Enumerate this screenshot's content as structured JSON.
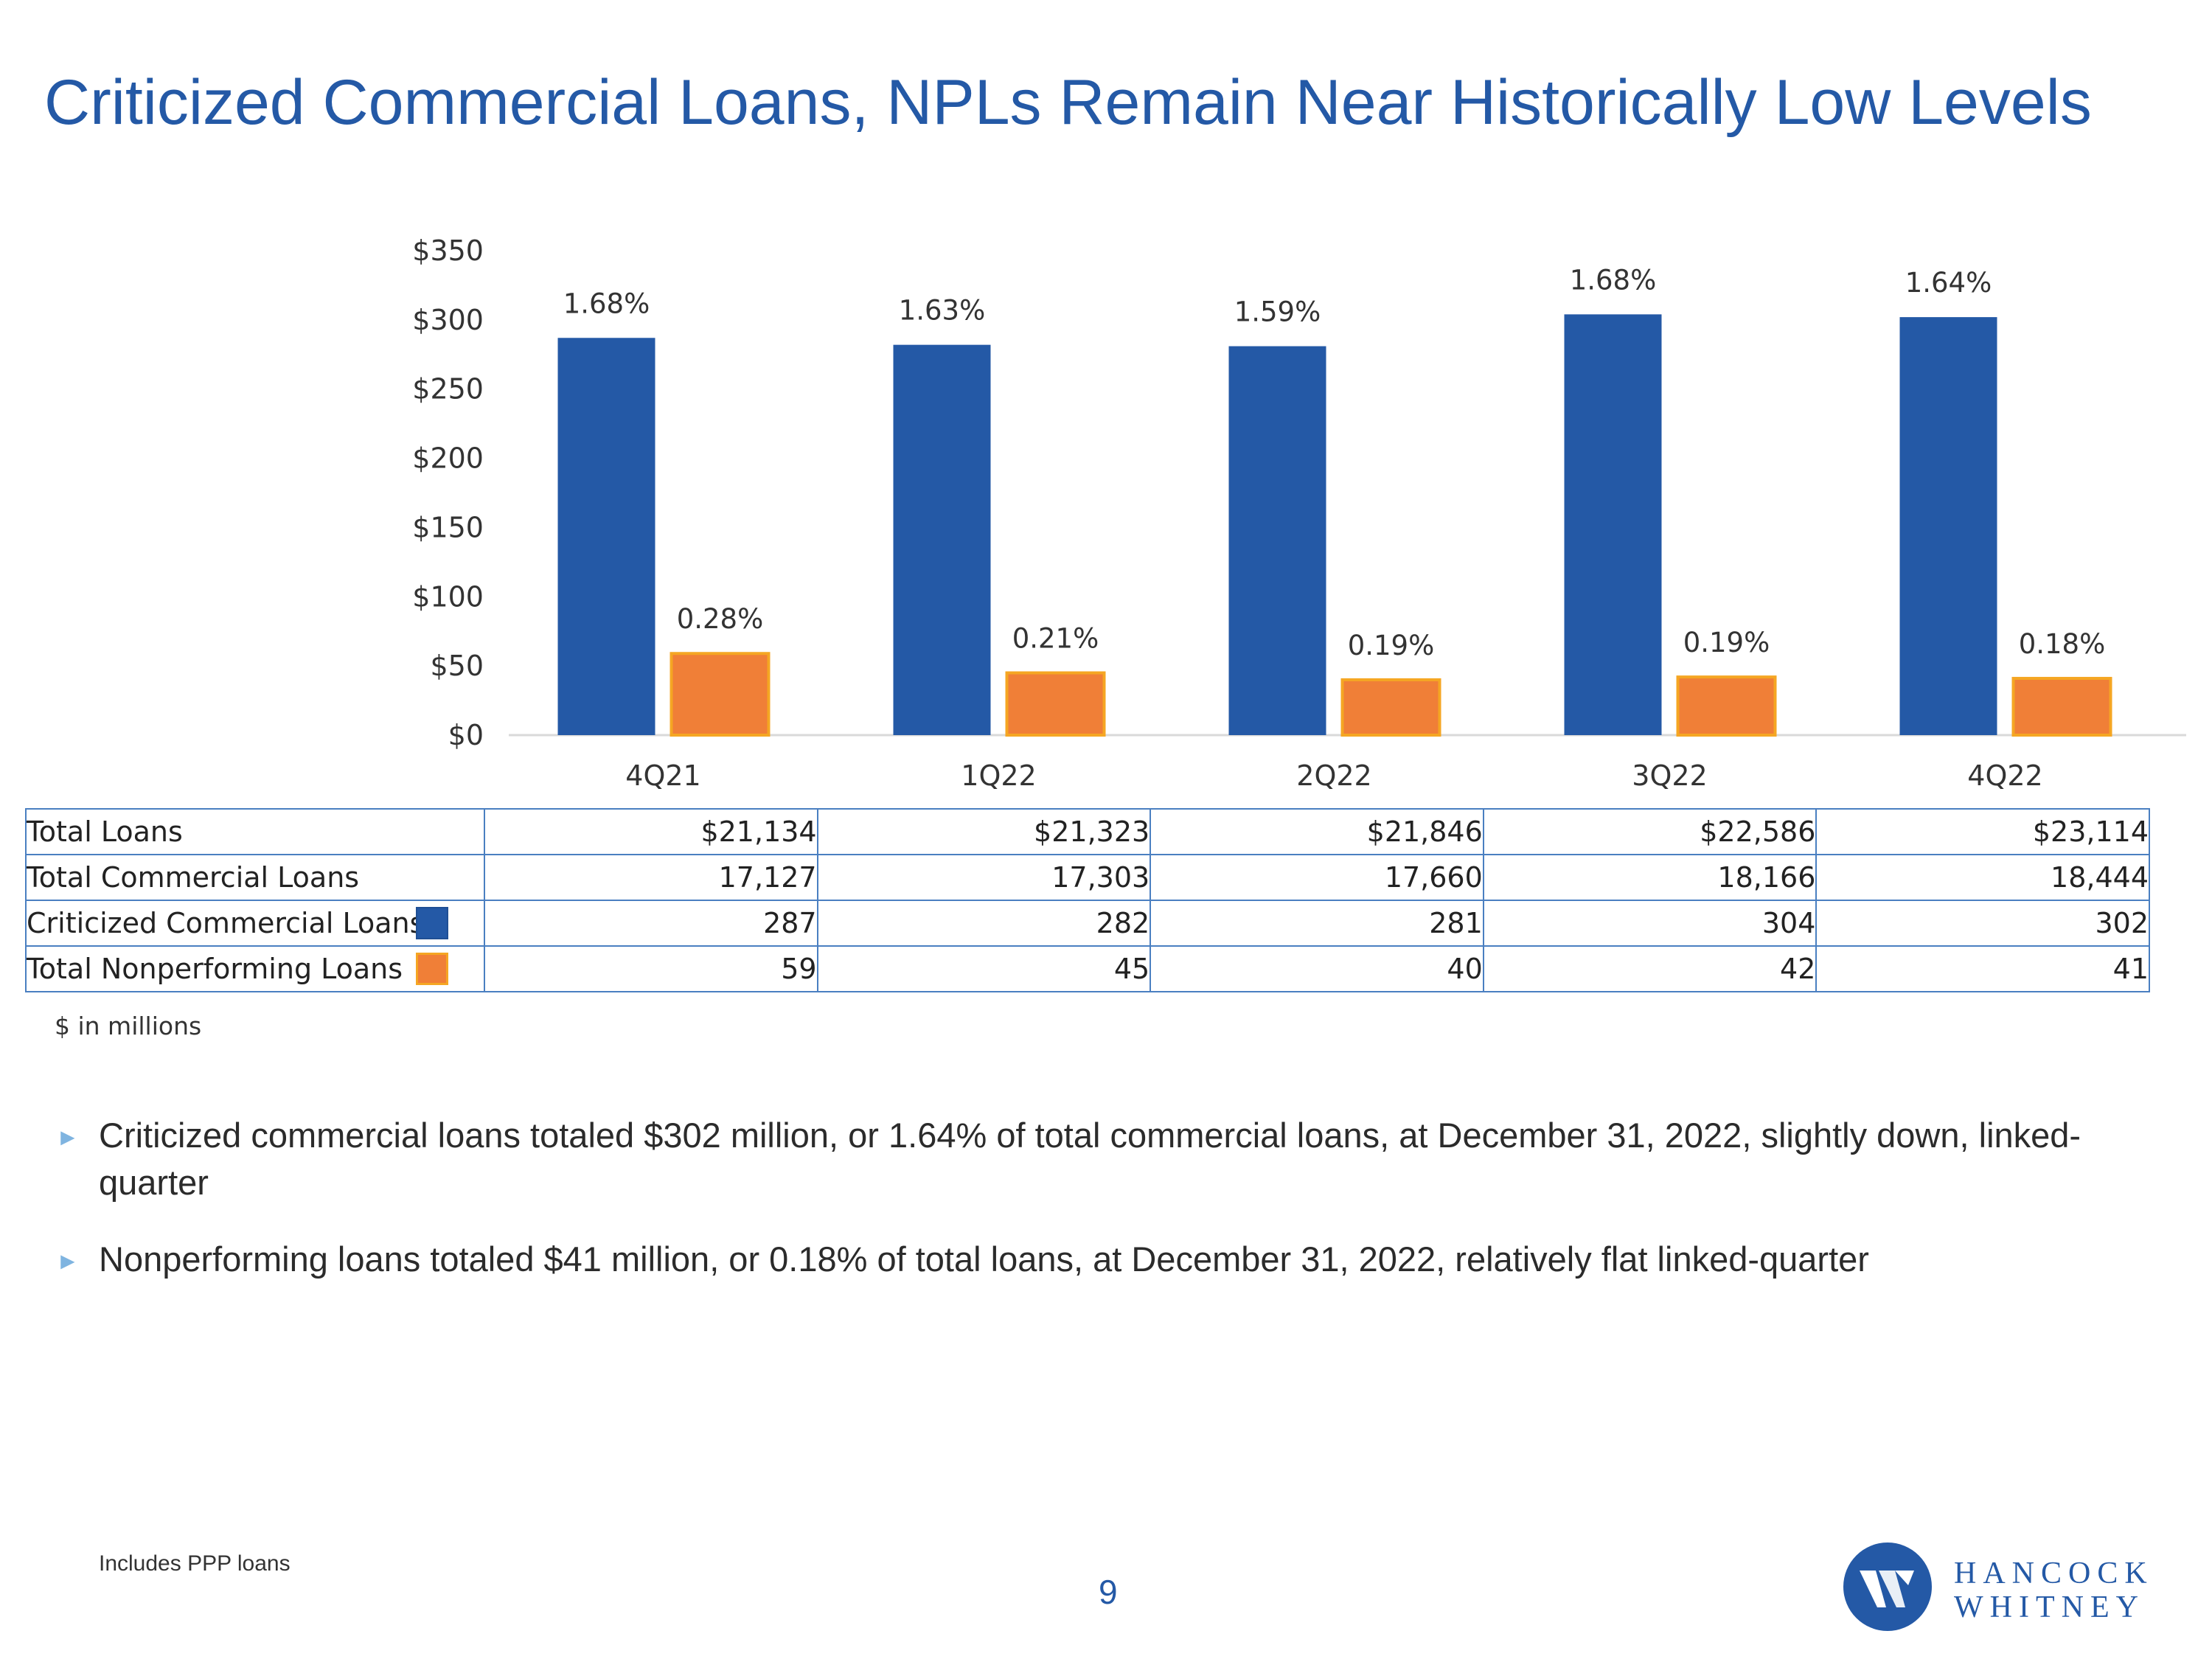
{
  "title": "Criticized Commercial Loans, NPLs Remain Near Historically Low Levels",
  "chart_data": {
    "type": "bar",
    "categories": [
      "4Q21",
      "1Q22",
      "2Q22",
      "3Q22",
      "4Q22"
    ],
    "series": [
      {
        "name": "Criticized Commercial Loans",
        "values": [
          287,
          282,
          281,
          304,
          302
        ],
        "labels": [
          "1.68%",
          "1.63%",
          "1.59%",
          "1.68%",
          "1.64%"
        ],
        "color": "#2459a6"
      },
      {
        "name": "Total Nonperforming Loans",
        "values": [
          59,
          45,
          40,
          42,
          41
        ],
        "labels": [
          "0.28%",
          "0.21%",
          "0.19%",
          "0.19%",
          "0.18%"
        ],
        "color": "#f07f37",
        "border_color": "#f5a623"
      }
    ],
    "y_ticks": [
      "$0",
      "$50",
      "$100",
      "$150",
      "$200",
      "$250",
      "$300",
      "$350"
    ],
    "ylim": [
      0,
      350
    ],
    "grid": false
  },
  "table": {
    "rows": [
      {
        "label": "Total Loans",
        "values": [
          "$21,134",
          "$21,323",
          "$21,846",
          "$22,586",
          "$23,114"
        ]
      },
      {
        "label": "Total Commercial Loans",
        "values": [
          "17,127",
          "17,303",
          "17,660",
          "18,166",
          "18,444"
        ]
      },
      {
        "label": "Criticized Commercial Loans",
        "values": [
          "287",
          "282",
          "281",
          "304",
          "302"
        ]
      },
      {
        "label": "Total Nonperforming Loans",
        "values": [
          "59",
          "45",
          "40",
          "42",
          "41"
        ]
      }
    ]
  },
  "units_note": "$ in millions",
  "bullets": [
    "Criticized commercial loans totaled $302 million, or 1.64% of total commercial loans, at December 31, 2022, slightly down, linked-quarter",
    "Nonperforming loans totaled $41 million, or 0.18% of total loans, at December 31, 2022, relatively flat linked-quarter"
  ],
  "bullet_marker": "►",
  "footnote": "Includes PPP loans",
  "page_number": "9",
  "logo": {
    "line1": "HANCOCK",
    "line2": "WHITNEY"
  }
}
